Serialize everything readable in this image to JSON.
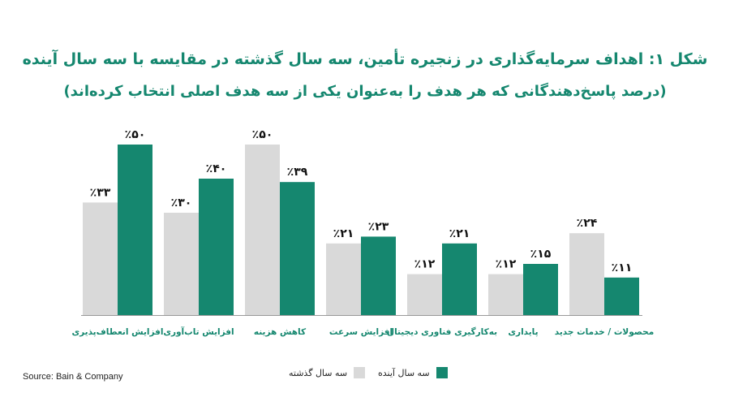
{
  "chart_data": {
    "type": "bar",
    "title": "شکل ۱: اهداف سرمایه‌گذاری در زنجیره تأمین، سه سال گذشته در مقایسه با سه سال آینده",
    "subtitle": "(درصد پاسخ‌دهندگانی که هر هدف را به‌عنوان یکی از سه هدف اصلی انتخاب کرده‌اند)",
    "categories": [
      "افزایش انعطاف‌پذیری",
      "افزایش تاب‌آوری",
      "کاهش هزینه",
      "افزایش سرعت",
      "به‌کارگیری فناوری دیجیتال",
      "پایداری",
      "محصولات / خدمات جدید"
    ],
    "series": [
      {
        "name": "سه سال گذشته",
        "color": "#d9d9d9",
        "values": [
          33,
          30,
          50,
          21,
          12,
          12,
          24
        ],
        "labels": [
          "٪۳۳",
          "٪۳۰",
          "٪۵۰",
          "٪۲۱",
          "٪۱۲",
          "٪۱۲",
          "٪۲۴"
        ]
      },
      {
        "name": "سه سال آینده",
        "color": "#15876f",
        "values": [
          50,
          40,
          39,
          23,
          21,
          15,
          11
        ],
        "labels": [
          "٪۵۰",
          "٪۴۰",
          "٪۳۹",
          "٪۲۳",
          "٪۲۱",
          "٪۱۵",
          "٪۱۱"
        ]
      }
    ],
    "ylim": [
      0,
      50
    ],
    "grid": false,
    "legend_position": "bottom-center",
    "source": "Source: Bain & Company"
  }
}
